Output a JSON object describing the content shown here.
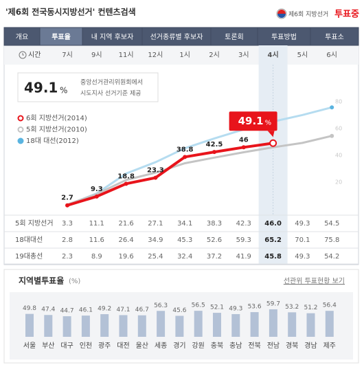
{
  "header": {
    "title": "'제6회 전국동시지방선거' 컨텐츠검색",
    "logo_sub": "제6회 지방선거",
    "logo_main": "투표중"
  },
  "tabs": [
    "개요",
    "투표율",
    "내 지역 후보자",
    "선거종류별 후보자",
    "토론회",
    "투표방법",
    "투표소"
  ],
  "active_tab": 1,
  "time_label": "시간",
  "info": {
    "value": "49.1",
    "unit": "%",
    "note": [
      "중앙선거관리위원회에서",
      "시도지사 선거기준 제공"
    ]
  },
  "chart_data": [
    {
      "type": "line",
      "categories": [
        "7시",
        "9시",
        "11시",
        "12시",
        "1시",
        "2시",
        "3시",
        "4시",
        "5시",
        "6시"
      ],
      "active_index": 7,
      "series": [
        {
          "name": "6회 지방선거(2014)",
          "color": "#e8141b",
          "values": [
            2.7,
            9.3,
            18.8,
            23.3,
            38.8,
            42.5,
            46,
            49.1,
            null,
            null
          ]
        },
        {
          "name": "5회 지방선거(2010)",
          "color": "#c4c4c4",
          "values": [
            3.3,
            11.1,
            21.6,
            27.1,
            34.1,
            38.3,
            42.3,
            46.0,
            49.3,
            54.5
          ]
        },
        {
          "name": "18대 대선(2012)",
          "color": "#5ab4e0",
          "values": [
            2.8,
            11.6,
            26.4,
            34.9,
            45.3,
            52.6,
            59.3,
            65.2,
            70.1,
            75.8
          ]
        }
      ],
      "ylim": [
        0,
        80
      ],
      "yticks": [
        20,
        40,
        60,
        80
      ],
      "callout_unit": "%"
    },
    {
      "type": "bar",
      "title": "지역별투표율",
      "unit": "(%)",
      "categories": [
        "서울",
        "부산",
        "대구",
        "인천",
        "광주",
        "대전",
        "울산",
        "세종",
        "경기",
        "강원",
        "충북",
        "충남",
        "전북",
        "전남",
        "경북",
        "경남",
        "제주"
      ],
      "values": [
        49.8,
        47.4,
        44.7,
        46.1,
        49.2,
        47.1,
        46.7,
        56.3,
        45.6,
        56.5,
        52.1,
        49.3,
        53.6,
        59.7,
        53.2,
        51.2,
        56.4
      ],
      "color": "#b3c1d6",
      "ylim": [
        0,
        100
      ]
    }
  ],
  "region_link": "선관위 투표현황 보기",
  "table": {
    "rows": [
      {
        "name": "5회 지방선거",
        "values": [
          "3.3",
          "11.1",
          "21.6",
          "27.1",
          "34.1",
          "38.3",
          "42.3",
          "46.0",
          "49.3",
          "54.5"
        ]
      },
      {
        "name": "18대대선",
        "values": [
          "2.8",
          "11.6",
          "26.4",
          "34.9",
          "45.3",
          "52.6",
          "59.3",
          "65.2",
          "70.1",
          "75.8"
        ]
      },
      {
        "name": "19대총선",
        "values": [
          "2.3",
          "8.9",
          "19.6",
          "25.4",
          "32.4",
          "37.2",
          "41.9",
          "45.8",
          "49.3",
          "54.2"
        ]
      }
    ]
  }
}
